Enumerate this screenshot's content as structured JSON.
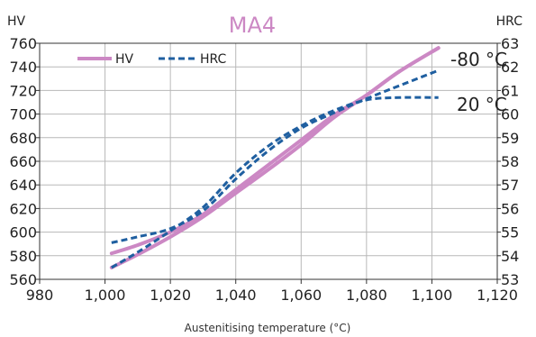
{
  "chart_data": {
    "type": "line",
    "title": "MA4",
    "top_caption": "",
    "xlabel": "Austenitising temperature (°C)",
    "ylabel_left": "HV",
    "ylabel_right": "HRC",
    "xlim": [
      980,
      1120
    ],
    "ylim_left": [
      560,
      760
    ],
    "ylim_right": [
      53,
      63
    ],
    "x_ticks": [
      "980",
      "1,000",
      "1,020",
      "1,040",
      "1,060",
      "1,080",
      "1,100",
      "1,120"
    ],
    "y_ticks_left": [
      "560",
      "580",
      "600",
      "620",
      "640",
      "660",
      "680",
      "700",
      "720",
      "740",
      "760"
    ],
    "y_ticks_right": [
      "53",
      "54",
      "55",
      "56",
      "57",
      "58",
      "59",
      "60",
      "61",
      "62",
      "63"
    ],
    "grid": true,
    "legend_position": "top-left",
    "legend": [
      "HV",
      "HRC"
    ],
    "annotations": [
      "-80 °C",
      "20 °C"
    ],
    "series": [
      {
        "name": "HV",
        "axis": "left",
        "style": "solid",
        "color": "#cc88c4",
        "lines": [
          {
            "x": [
              1002,
              1010,
              1020,
              1030,
              1040,
              1050,
              1060,
              1070,
              1080,
              1090,
              1102
            ],
            "y": [
              570,
              581,
              596,
              613,
              633,
              653,
              674,
              697,
              716,
              736,
              756
            ]
          },
          {
            "x": [
              1002,
              1010,
              1020,
              1030,
              1040,
              1050,
              1060,
              1070,
              1080,
              1090,
              1102
            ],
            "y": [
              582,
              589,
              600,
              615,
              636,
              657,
              678,
              699,
              716,
              736,
              756
            ]
          }
        ]
      },
      {
        "name": "HRC",
        "axis": "right",
        "style": "dashed",
        "color": "#1f5fa0",
        "lines": [
          {
            "x": [
              1002,
              1010,
              1020,
              1030,
              1040,
              1050,
              1060,
              1070,
              1080,
              1090,
              1102
            ],
            "y": [
              54.55,
              54.8,
              55.15,
              55.9,
              57.25,
              58.45,
              59.4,
              60.05,
              60.65,
              61.2,
              61.85
            ]
          },
          {
            "x": [
              1002,
              1010,
              1020,
              1030,
              1040,
              1050,
              1060,
              1070,
              1080,
              1090,
              1102
            ],
            "y": [
              53.5,
              54.15,
              55.05,
              56.05,
              57.5,
              58.65,
              59.5,
              60.15,
              60.6,
              60.7,
              60.7
            ]
          }
        ]
      }
    ]
  }
}
